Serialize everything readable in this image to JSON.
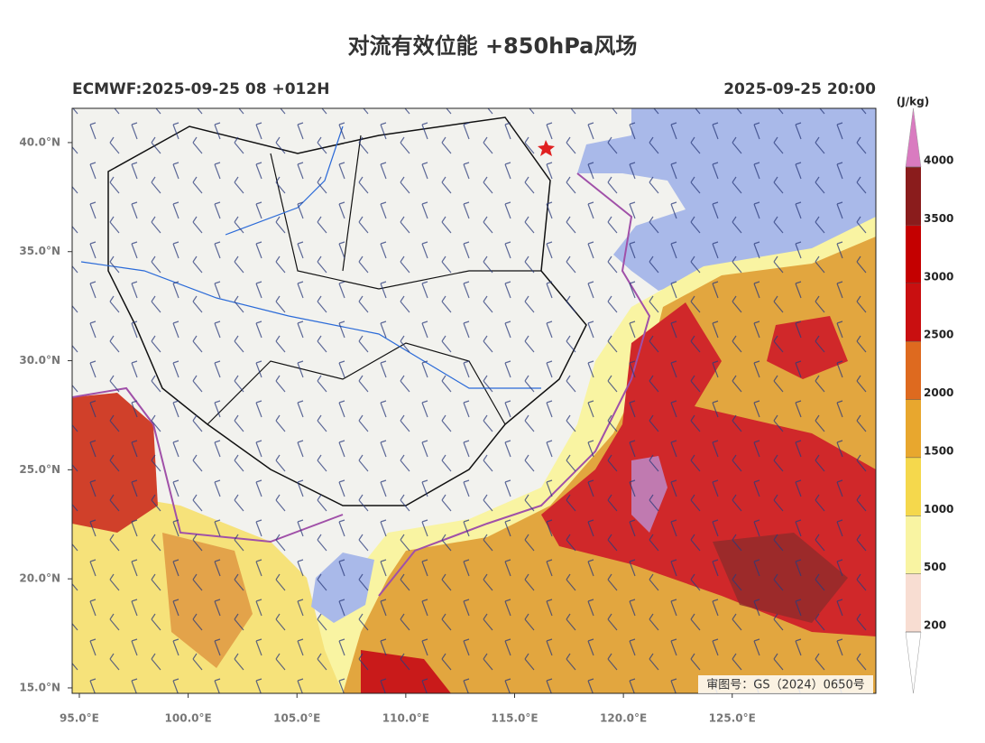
{
  "title": "对流有效位能 +850hPa风场",
  "header": {
    "left": "ECMWF:2025-09-25 08 +012H",
    "right": "2025-09-25 20:00"
  },
  "map": {
    "lonlim": [
      94.67,
      131.6
    ],
    "latlim": [
      14.75,
      41.57
    ],
    "lat_ticks": [
      {
        "value": 40,
        "label": "40.0°N"
      },
      {
        "value": 35,
        "label": "35.0°N"
      },
      {
        "value": 30,
        "label": "30.0°N"
      },
      {
        "value": 25,
        "label": "25.0°N"
      },
      {
        "value": 20,
        "label": "20.0°N"
      },
      {
        "value": 15,
        "label": "15.0°N"
      }
    ],
    "lon_ticks": [
      {
        "value": 95,
        "label": "95.0°E"
      },
      {
        "value": 100,
        "label": "100.0°E"
      },
      {
        "value": 105,
        "label": "105.0°E"
      },
      {
        "value": 110,
        "label": "110.0°E"
      },
      {
        "value": 115,
        "label": "115.0°E"
      },
      {
        "value": 120,
        "label": "120.0°E"
      },
      {
        "value": 125,
        "label": "125.0°E"
      }
    ],
    "watermark": "审图号：GS（2024）0650号"
  },
  "colorbar": {
    "unit": "(J/kg)",
    "levels": [
      200,
      500,
      1000,
      1500,
      2000,
      2500,
      3000,
      3500,
      4000
    ],
    "colors": [
      "#f8ddd2",
      "#f9f4a2",
      "#f5d84c",
      "#e8a72e",
      "#de6a1f",
      "#c90f10",
      "#c40000",
      "#8a1c1c"
    ],
    "over_color": "#d97bc0",
    "under_color": "#ffffff"
  }
}
